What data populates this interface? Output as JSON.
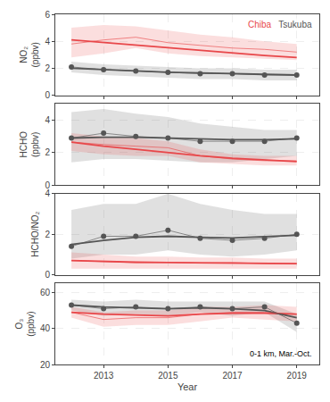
{
  "chart_data": [
    {
      "type": "line",
      "ylabel": "NO₂\n(ppbv)",
      "x": [
        2012,
        2013,
        2014,
        2015,
        2016,
        2017,
        2018,
        2019
      ],
      "xlim": [
        2011.5,
        2019.7
      ],
      "xticks": [
        2013,
        2015,
        2017,
        2019
      ],
      "ylim": [
        0,
        6
      ],
      "yticks": [
        0,
        2,
        4,
        6
      ],
      "grid": true,
      "tick_labels": "y",
      "legend": "upper right",
      "series": [
        {
          "name": "Chiba",
          "color": "#e8474a",
          "marker": "circle-open",
          "values": [
            3.8,
            4.1,
            4.3,
            3.9,
            3.7,
            3.5,
            3.4,
            3.2
          ],
          "upper": [
            5.0,
            5.2,
            5.1,
            4.8,
            4.5,
            4.3,
            4.0,
            3.8
          ],
          "lower": [
            2.8,
            3.1,
            3.5,
            3.1,
            2.9,
            2.8,
            2.7,
            2.6
          ],
          "trend": [
            4.1,
            3.9,
            3.7,
            3.5,
            3.3,
            3.1,
            2.95,
            2.8
          ]
        },
        {
          "name": "Tsukuba",
          "color": "#555555",
          "marker": "circle",
          "values": [
            2.1,
            1.9,
            1.8,
            1.7,
            1.6,
            1.6,
            1.5,
            1.5
          ],
          "upper": [
            2.5,
            2.3,
            2.2,
            2.1,
            2.0,
            2.0,
            1.9,
            1.9
          ],
          "lower": [
            1.7,
            1.5,
            1.4,
            1.3,
            1.2,
            1.2,
            1.1,
            1.1
          ],
          "trend": [
            2.0,
            1.9,
            1.8,
            1.7,
            1.65,
            1.6,
            1.55,
            1.5
          ]
        }
      ]
    },
    {
      "type": "line",
      "ylabel": "HCHO\n(ppbv)",
      "x": [
        2012,
        2013,
        2014,
        2015,
        2016,
        2017,
        2018,
        2019
      ],
      "xlim": [
        2011.5,
        2019.7
      ],
      "xticks": [
        2013,
        2015,
        2017,
        2019
      ],
      "ylim": [
        0,
        5
      ],
      "yticks": [
        0,
        2,
        4
      ],
      "grid": true,
      "tick_labels": "y",
      "series": [
        {
          "name": "Chiba",
          "color": "#e8474a",
          "marker": "circle-open",
          "values": [
            2.65,
            2.5,
            2.4,
            2.3,
            1.8,
            1.6,
            1.5,
            1.5
          ],
          "upper": [
            3.2,
            3.0,
            2.9,
            2.7,
            2.2,
            1.9,
            1.8,
            1.8
          ],
          "lower": [
            2.1,
            1.9,
            1.8,
            1.8,
            1.4,
            1.3,
            1.2,
            1.2
          ],
          "trend": [
            2.65,
            2.4,
            2.2,
            2.0,
            1.8,
            1.65,
            1.55,
            1.45
          ]
        },
        {
          "name": "Tsukuba",
          "color": "#555555",
          "marker": "circle",
          "values": [
            2.9,
            3.2,
            3.0,
            2.9,
            2.7,
            2.7,
            2.7,
            2.9
          ],
          "upper": [
            4.5,
            4.7,
            4.4,
            4.2,
            3.8,
            3.6,
            3.4,
            3.4
          ],
          "lower": [
            1.4,
            1.6,
            1.6,
            1.5,
            1.4,
            1.4,
            1.6,
            1.8
          ],
          "trend": [
            2.9,
            2.95,
            2.95,
            2.9,
            2.85,
            2.8,
            2.8,
            2.85
          ]
        }
      ]
    },
    {
      "type": "line",
      "ylabel": "HCHO/NO₂",
      "x": [
        2012,
        2013,
        2014,
        2015,
        2016,
        2017,
        2018,
        2019
      ],
      "xlim": [
        2011.5,
        2019.7
      ],
      "xticks": [
        2013,
        2015,
        2017,
        2019
      ],
      "ylim": [
        0,
        4
      ],
      "yticks": [
        0,
        2,
        4
      ],
      "grid": true,
      "tick_labels": "y",
      "series": [
        {
          "name": "Chiba",
          "color": "#e8474a",
          "marker": "circle-open",
          "values": [
            0.7,
            0.65,
            0.6,
            0.62,
            0.58,
            0.6,
            0.55,
            0.55
          ],
          "upper": [
            1.1,
            1.0,
            0.9,
            0.9,
            0.85,
            0.85,
            0.8,
            0.8
          ],
          "lower": [
            0.3,
            0.3,
            0.3,
            0.3,
            0.3,
            0.3,
            0.3,
            0.3
          ],
          "trend": [
            0.7,
            0.65,
            0.62,
            0.6,
            0.58,
            0.57,
            0.56,
            0.55
          ]
        },
        {
          "name": "Tsukuba",
          "color": "#555555",
          "marker": "circle",
          "values": [
            1.4,
            1.9,
            1.9,
            2.2,
            1.8,
            1.7,
            1.8,
            2.0
          ],
          "upper": [
            3.2,
            3.5,
            3.5,
            4.0,
            3.5,
            3.2,
            3.0,
            3.0
          ],
          "lower": [
            0.8,
            1.0,
            1.0,
            1.2,
            1.0,
            0.9,
            1.0,
            1.2
          ],
          "trend": [
            1.5,
            1.7,
            1.85,
            1.9,
            1.85,
            1.82,
            1.88,
            1.95
          ]
        }
      ]
    },
    {
      "type": "line",
      "ylabel": "O₃\n(ppbv)",
      "xlabel": "Year",
      "annotation": "0-1 km, Mar.-Oct.",
      "x": [
        2012,
        2013,
        2014,
        2015,
        2016,
        2017,
        2018,
        2019
      ],
      "xlim": [
        2011.5,
        2019.7
      ],
      "xticks": [
        2013,
        2015,
        2017,
        2019
      ],
      "ylim": [
        20,
        65
      ],
      "yticks": [
        20,
        40,
        60
      ],
      "grid": true,
      "series": [
        {
          "name": "Chiba",
          "color": "#e8474a",
          "marker": "circle-open",
          "values": [
            49,
            45,
            46,
            46,
            48,
            49,
            49,
            48
          ],
          "upper": [
            52,
            49,
            50,
            50,
            52,
            52,
            53,
            52
          ],
          "lower": [
            46,
            41,
            42,
            42,
            44,
            46,
            45,
            44
          ],
          "trend": [
            49,
            48,
            47.5,
            47,
            48,
            48.5,
            48.5,
            48
          ]
        },
        {
          "name": "Tsukuba",
          "color": "#555555",
          "marker": "circle",
          "values": [
            53,
            51,
            52,
            51,
            52,
            51,
            52,
            43
          ],
          "upper": [
            56,
            55,
            56,
            55,
            55,
            55,
            55,
            48
          ],
          "lower": [
            50,
            47,
            48,
            47,
            49,
            47,
            49,
            38
          ],
          "trend": [
            53,
            52,
            51.5,
            51,
            51.5,
            51,
            50,
            46
          ]
        }
      ]
    }
  ]
}
